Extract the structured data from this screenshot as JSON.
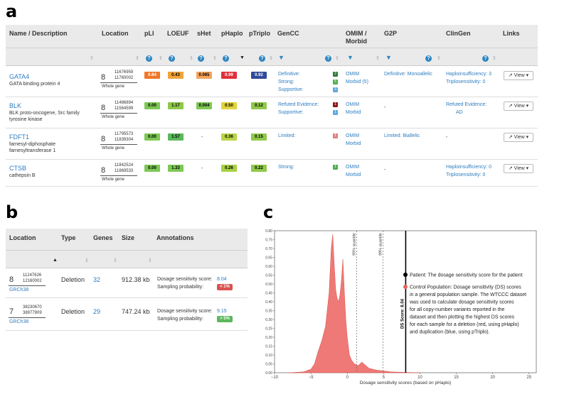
{
  "panel_a": {
    "letter": "a",
    "headers": {
      "name": "Name / Description",
      "location": "Location",
      "pli": "pLI",
      "loeuf": "LOEUF",
      "shet": "sHet",
      "phaplo": "pHaplo",
      "ptriplo": "pTriplo",
      "gencc": "GenCC",
      "omim": "OMIM /",
      "omim2": "Morbid",
      "g2p": "G2P",
      "clingen": "ClinGen",
      "links": "Links"
    },
    "rows": [
      {
        "name": "GATA4",
        "desc": "GATA binding protein 4",
        "desc2": "",
        "chr": "8",
        "start": "11676959",
        "end": "11760002",
        "scope": "Whole gene",
        "pli": "0.84",
        "loeuf": "0.43",
        "shet": "0.065",
        "phaplo": "0.99",
        "ptriplo": "0.92",
        "gencc": [
          "Definitive:",
          "Strong:",
          "Supportive:"
        ],
        "gencc_counts": [
          "2",
          "5",
          "3"
        ],
        "omim": "OMIM",
        "morbid": "Morbid (5)",
        "g2p": "Definitive: Monoallelic",
        "clingen1": "Haploinsufficiency: 3",
        "clingen2": "Triplosensitivity: 0",
        "view": "View"
      },
      {
        "name": "BLK",
        "desc": "BLK proto-oncogene, Src family",
        "desc2": "tyrosine kinase",
        "chr": "8",
        "start": "11486894",
        "end": "11564599",
        "scope": "Whole gene",
        "pli": "0.00",
        "loeuf": "1.17",
        "shet": "0.004",
        "phaplo": "0.50",
        "ptriplo": "0.12",
        "gencc": [
          "Refuted Evidence:",
          "Supportive:"
        ],
        "gencc_counts": [
          "1",
          "1"
        ],
        "omim": "OMIM",
        "morbid": "Morbid",
        "g2p": "-",
        "clingen1": "Refuted Evidence:",
        "clingen2": "AD",
        "view": "View"
      },
      {
        "name": "FDFT1",
        "desc": "farnesyl-diphosphate",
        "desc2": "farnesyltransferase 1",
        "chr": "8",
        "start": "11795573",
        "end": "11839304",
        "scope": "Whole gene",
        "pli": "0.00",
        "loeuf": "1.57",
        "shet": "-",
        "phaplo": "0.36",
        "ptriplo": "0.15",
        "gencc": [
          "Limited:"
        ],
        "gencc_counts": [
          "1"
        ],
        "omim": "OMIM",
        "morbid": "Morbid",
        "g2p": "Limited: Biallelic",
        "clingen1": "-",
        "clingen2": "",
        "view": "View"
      },
      {
        "name": "CTSB",
        "desc": "cathepsin B",
        "desc2": "",
        "chr": "8",
        "start": "11842524",
        "end": "11869533",
        "scope": "Whole gene",
        "pli": "0.00",
        "loeuf": "1.33",
        "shet": "-",
        "phaplo": "0.26",
        "ptriplo": "0.22",
        "gencc": [
          "Strong:"
        ],
        "gencc_counts": [
          "1"
        ],
        "omim": "OMIM",
        "morbid": "Morbid",
        "g2p": "-",
        "clingen1": "Haploinsufficiency: 0",
        "clingen2": "Triplosensitivity: 0",
        "view": "View"
      }
    ]
  },
  "panel_b": {
    "letter": "b",
    "headers": {
      "location": "Location",
      "type": "Type",
      "genes": "Genes",
      "size": "Size",
      "annotations": "Annotations"
    },
    "rows": [
      {
        "chr": "8",
        "start": "11247626",
        "end": "12160002",
        "build": "GRCh38",
        "type": "Deletion",
        "genes": "32",
        "size": "912.38 kb",
        "ds_label": "Dosage sensitivity score:",
        "ds": "8.04",
        "sp_label": "Sampling probability:",
        "sp": "< 1%",
        "sp_color": "#d9534f"
      },
      {
        "chr": "7",
        "start": "38230670",
        "end": "38977909",
        "build": "GRCh38",
        "type": "Deletion",
        "genes": "29",
        "size": "747.24 kb",
        "ds_label": "Dosage sensitivity score:",
        "ds": "9.15",
        "sp_label": "Sampling probability:",
        "sp": "> 5%",
        "sp_color": "#5cb85c"
      }
    ]
  },
  "panel_c": {
    "letter": "c"
  },
  "chart_data": {
    "type": "area",
    "title": "",
    "xlabel": "Dosage sensitivity scores (based on pHaplo)",
    "ylabel": "Density",
    "xlim": [
      -10,
      26
    ],
    "ylim": [
      0,
      0.8
    ],
    "xticks": [
      -10,
      -5,
      0,
      5,
      10,
      15,
      20,
      25
    ],
    "yticks": [
      0.0,
      0.05,
      0.1,
      0.15,
      0.2,
      0.25,
      0.3,
      0.35,
      0.4,
      0.45,
      0.5,
      0.55,
      0.6,
      0.65,
      0.7,
      0.75,
      0.8
    ],
    "series": [
      {
        "name": "Control Population",
        "x": [
          -8,
          -6,
          -5,
          -4.5,
          -4,
          -3.5,
          -3,
          -2.5,
          -2.2,
          -2.0,
          -1.8,
          -1.6,
          -1.4,
          -1.2,
          -1.0,
          -0.8,
          -0.6,
          -0.4,
          -0.2,
          0,
          0.3,
          0.6,
          1,
          1.5,
          2,
          3,
          4,
          5,
          6,
          8,
          10
        ],
        "y": [
          0,
          0.005,
          0.02,
          0.05,
          0.12,
          0.18,
          0.26,
          0.45,
          0.7,
          0.78,
          0.62,
          0.47,
          0.42,
          0.4,
          0.44,
          0.52,
          0.64,
          0.46,
          0.3,
          0.2,
          0.1,
          0.07,
          0.05,
          0.04,
          0.06,
          0.025,
          0.015,
          0.01,
          0.005,
          0.002,
          0
        ]
      }
    ],
    "quantiles": [
      {
        "label": "95% quantile",
        "x": 1.3
      },
      {
        "label": "99% quantile",
        "x": 4.9
      }
    ],
    "ds_line": {
      "label": "DS Score: 8.04",
      "x": 8.04
    },
    "legend": [
      {
        "color": "#000000",
        "text": "Patient: The dosage sensitivity score for the patient"
      },
      {
        "color": "#e8625e",
        "text": "Control Population: Dosage sensitivity (DS) scores in a general population sample. The WTCCC dataset was used to calculate dosage sensitivity scores for all copy-number variants reported in the dataset and then plotting the highest DS scores for each sample for a deletion (red, using pHaplo) and duplication (blue, using pTriplo)."
      }
    ]
  }
}
